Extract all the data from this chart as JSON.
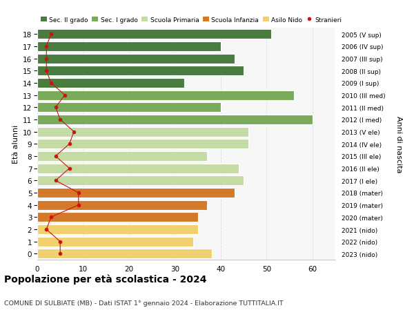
{
  "ages": [
    18,
    17,
    16,
    15,
    14,
    13,
    12,
    11,
    10,
    9,
    8,
    7,
    6,
    5,
    4,
    3,
    2,
    1,
    0
  ],
  "bar_values": [
    51,
    40,
    43,
    45,
    32,
    56,
    40,
    60,
    46,
    46,
    37,
    44,
    45,
    43,
    37,
    35,
    35,
    34,
    38
  ],
  "bar_colors": [
    "#4a7c3f",
    "#4a7c3f",
    "#4a7c3f",
    "#4a7c3f",
    "#4a7c3f",
    "#7aab5a",
    "#7aab5a",
    "#7aab5a",
    "#c5dba5",
    "#c5dba5",
    "#c5dba5",
    "#c5dba5",
    "#c5dba5",
    "#d4782a",
    "#d4782a",
    "#d4782a",
    "#f0d070",
    "#f0d070",
    "#f0d070"
  ],
  "stranieri": [
    3,
    2,
    2,
    2,
    3,
    6,
    4,
    5,
    8,
    7,
    4,
    7,
    4,
    9,
    9,
    3,
    2,
    5,
    5
  ],
  "right_labels": [
    "2005 (V sup)",
    "2006 (IV sup)",
    "2007 (III sup)",
    "2008 (II sup)",
    "2009 (I sup)",
    "2010 (III med)",
    "2011 (II med)",
    "2012 (I med)",
    "2013 (V ele)",
    "2014 (IV ele)",
    "2015 (III ele)",
    "2016 (II ele)",
    "2017 (I ele)",
    "2018 (mater)",
    "2019 (mater)",
    "2020 (mater)",
    "2021 (nido)",
    "2022 (nido)",
    "2023 (nido)"
  ],
  "legend_labels": [
    "Sec. II grado",
    "Sec. I grado",
    "Scuola Primaria",
    "Scuola Infanzia",
    "Asilo Nido",
    "Stranieri"
  ],
  "legend_colors": [
    "#4a7c3f",
    "#7aab5a",
    "#c5dba5",
    "#d4782a",
    "#f0d070",
    "#cc1111"
  ],
  "ylabel_left": "Età alunni",
  "ylabel_right": "Anni di nascita",
  "title": "Popolazione per età scolastica - 2024",
  "subtitle": "COMUNE DI SULBIATE (MB) - Dati ISTAT 1° gennaio 2024 - Elaborazione TUTTITALIA.IT",
  "xlim": [
    0,
    65
  ],
  "xticks": [
    0,
    10,
    20,
    30,
    40,
    50,
    60
  ],
  "background_color": "#ffffff",
  "plot_bg": "#f7f7f7",
  "bar_height": 0.8,
  "stranieri_color": "#cc1111",
  "grid_color": "#dddddd"
}
